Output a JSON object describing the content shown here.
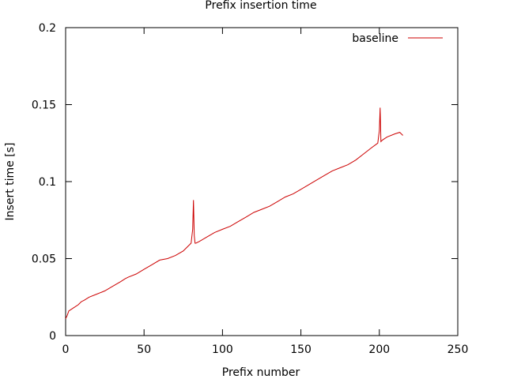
{
  "chart_data": {
    "type": "line",
    "title": "Prefix insertion time",
    "xlabel": "Prefix number",
    "ylabel": "Insert time [s]",
    "xlim": [
      0,
      250
    ],
    "ylim": [
      0,
      0.2
    ],
    "x_ticks": [
      "0",
      "50",
      "100",
      "150",
      "200",
      "250"
    ],
    "y_ticks": [
      "0",
      "0.05",
      "0.1",
      "0.15",
      "0.2"
    ],
    "x_tick_values": [
      0,
      50,
      100,
      150,
      200,
      250
    ],
    "y_tick_values": [
      0,
      0.05,
      0.1,
      0.15,
      0.2
    ],
    "grid": false,
    "legend": "top-right",
    "series": [
      {
        "name": "baseline",
        "color": "#cc0000",
        "x": [
          0,
          1,
          2,
          5,
          8,
          10,
          12,
          15,
          20,
          25,
          30,
          35,
          38,
          40,
          45,
          50,
          55,
          60,
          65,
          70,
          75,
          78,
          80,
          81,
          81.5,
          82,
          82.5,
          83,
          85,
          90,
          95,
          100,
          105,
          110,
          115,
          120,
          125,
          130,
          135,
          140,
          145,
          150,
          155,
          160,
          165,
          170,
          175,
          180,
          185,
          190,
          195,
          199,
          200,
          200.5,
          201,
          202,
          205,
          210,
          213,
          215
        ],
        "y": [
          0.011,
          0.013,
          0.016,
          0.018,
          0.02,
          0.022,
          0.023,
          0.025,
          0.027,
          0.029,
          0.032,
          0.035,
          0.037,
          0.038,
          0.04,
          0.043,
          0.046,
          0.049,
          0.05,
          0.052,
          0.055,
          0.058,
          0.06,
          0.069,
          0.088,
          0.065,
          0.06,
          0.06,
          0.061,
          0.064,
          0.067,
          0.069,
          0.071,
          0.074,
          0.077,
          0.08,
          0.082,
          0.084,
          0.087,
          0.09,
          0.092,
          0.095,
          0.098,
          0.101,
          0.104,
          0.107,
          0.109,
          0.111,
          0.114,
          0.118,
          0.122,
          0.125,
          0.133,
          0.148,
          0.126,
          0.127,
          0.129,
          0.131,
          0.132,
          0.13
        ]
      }
    ]
  }
}
